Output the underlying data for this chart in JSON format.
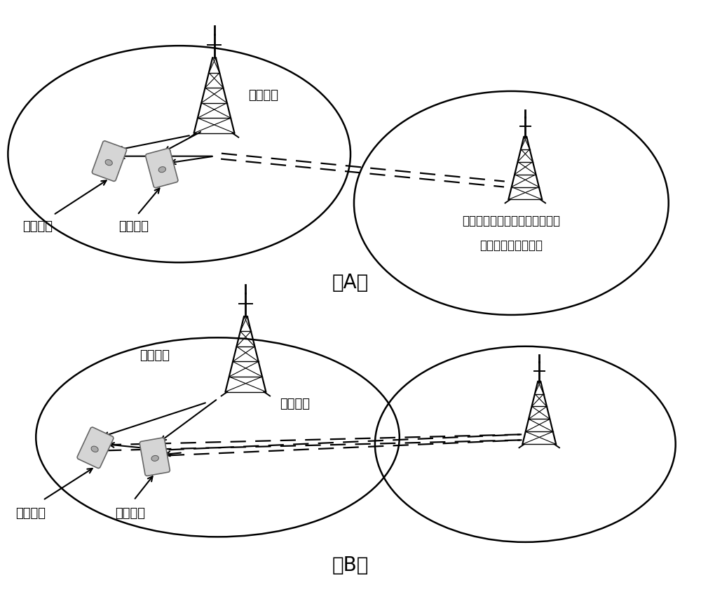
{
  "bg_color": "#ffffff",
  "line_color": "#000000",
  "fig_width": 10.0,
  "fig_height": 8.45,
  "label_A": "（A）",
  "label_B": "（B）",
  "text_idle_mode1": "空闲模式",
  "text_idle_mode2": "空闲模式",
  "text_connected_mode1": "连接模式",
  "text_connected_mode2": "连接模式",
  "text_ref_signal_A": "参考信号",
  "text_ref_signal_B": "参考信号",
  "text_ref_signal_cond_line1": "参考信号（当本小区服务质量小",
  "text_ref_signal_cond_line2": "于门限值时才测量）",
  "text_measure_report": "测量报告",
  "font_size_text": 13,
  "font_size_AB": 20
}
